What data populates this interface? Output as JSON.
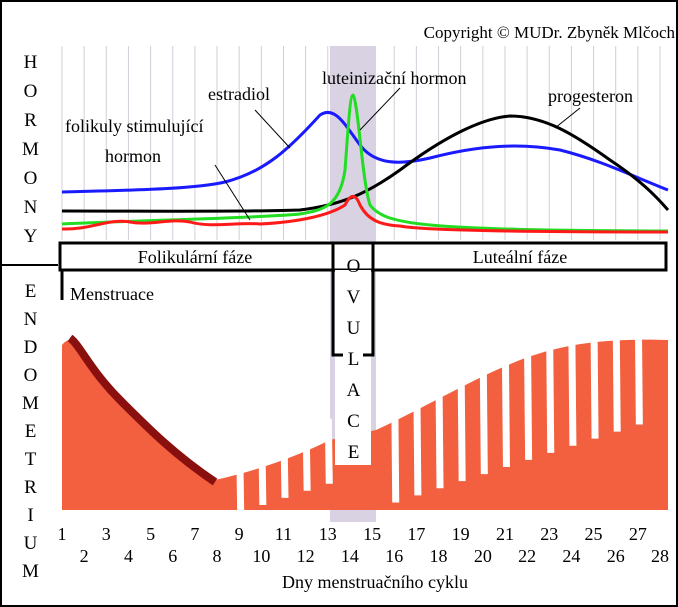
{
  "copyright": "Copyright © MUDr. Zbyněk Mlčoch",
  "side_labels": {
    "top": "HORMONY",
    "bottom": "ENDOMETRIUM"
  },
  "hormones": {
    "estradiol": "estradiol",
    "lh": "luteinizační hormon",
    "progesteron": "progesteron",
    "fsh_line1": "folikuly stimulující",
    "fsh_line2": "hormon"
  },
  "phases": {
    "follicular": "Folikulární fáze",
    "ovulation": "OVULACE",
    "luteal": "Luteální fáze",
    "menstruation": "Menstruace"
  },
  "days": [
    "1",
    "2",
    "3",
    "4",
    "5",
    "6",
    "7",
    "8",
    "9",
    "10",
    "11",
    "12",
    "13",
    "14",
    "15",
    "16",
    "17",
    "18",
    "19",
    "20",
    "21",
    "22",
    "23",
    "24",
    "25",
    "26",
    "27",
    "28"
  ],
  "x_axis_title": "Dny menstruačního cyklu"
}
